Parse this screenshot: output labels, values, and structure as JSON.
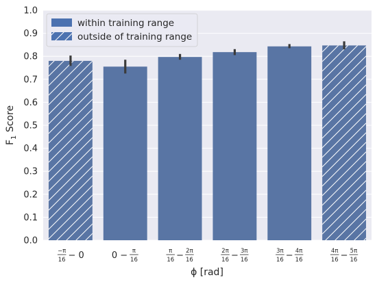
{
  "chart_data": {
    "type": "bar",
    "categories": [
      {
        "parts": [
          {
            "num": "−π",
            "den": "16"
          },
          {
            "op": "− 0"
          }
        ]
      },
      {
        "parts": [
          {
            "op": "0 −"
          },
          {
            "num": "π",
            "den": "16"
          }
        ]
      },
      {
        "parts": [
          {
            "num": "π",
            "den": "16"
          },
          {
            "op": "−"
          },
          {
            "num": "2π",
            "den": "16"
          }
        ]
      },
      {
        "parts": [
          {
            "num": "2π",
            "den": "16"
          },
          {
            "op": "−"
          },
          {
            "num": "3π",
            "den": "16"
          }
        ]
      },
      {
        "parts": [
          {
            "num": "3π",
            "den": "16"
          },
          {
            "op": "−"
          },
          {
            "num": "4π",
            "den": "16"
          }
        ]
      },
      {
        "parts": [
          {
            "num": "4π",
            "den": "16"
          },
          {
            "op": "−"
          },
          {
            "num": "5π",
            "den": "16"
          }
        ]
      }
    ],
    "values": [
      0.78,
      0.755,
      0.797,
      0.818,
      0.843,
      0.847
    ],
    "error_low": [
      0.758,
      0.725,
      0.785,
      0.805,
      0.835,
      0.83
    ],
    "error_high": [
      0.803,
      0.785,
      0.81,
      0.831,
      0.853,
      0.865
    ],
    "outside_training_range": [
      true,
      false,
      false,
      false,
      false,
      true
    ],
    "legend": {
      "within": "within training range",
      "outside": "outside of training range",
      "placement": "top-left"
    },
    "xlabel": "ϕ [rad]",
    "ylabel": {
      "base": "F",
      "sub": "1",
      "rest": " Score"
    },
    "ylim": [
      0.0,
      1.0
    ],
    "yticks": [
      "0.0",
      "0.1",
      "0.2",
      "0.3",
      "0.4",
      "0.5",
      "0.6",
      "0.7",
      "0.8",
      "0.9",
      "1.0"
    ],
    "grid": true,
    "colors": {
      "bar": "#5975a4",
      "background": "#eaeaf2",
      "grid": "#ffffff",
      "error": "#3b3b3b",
      "hatch": "#ffffff",
      "legend_patch": "#4c72b0"
    }
  }
}
